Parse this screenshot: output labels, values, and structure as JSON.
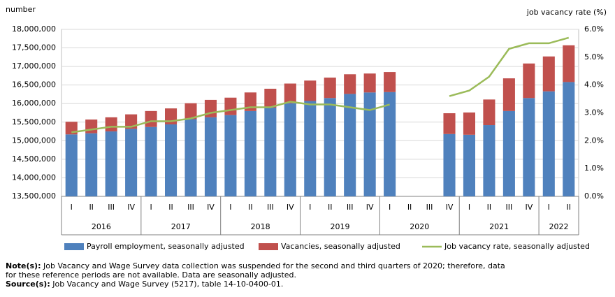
{
  "chart_data": {
    "type": "stacked-bar-line",
    "y_label": "number",
    "y2_label": "job vacancy rate (%)",
    "categories": [
      "I",
      "II",
      "III",
      "IV",
      "I",
      "II",
      "III",
      "IV",
      "I",
      "II",
      "III",
      "IV",
      "I",
      "II",
      "III",
      "IV",
      "I",
      "II",
      "III",
      "IV",
      "I",
      "II",
      "III",
      "IV",
      "I",
      "II"
    ],
    "groups": [
      {
        "label": "2016",
        "count": 4
      },
      {
        "label": "2017",
        "count": 4
      },
      {
        "label": "2018",
        "count": 4
      },
      {
        "label": "2019",
        "count": 4
      },
      {
        "label": "2020",
        "count": 4
      },
      {
        "label": "2021",
        "count": 4
      },
      {
        "label": "2022",
        "count": 2
      }
    ],
    "series": [
      {
        "name": "Payroll employment, seasonally adjusted",
        "kind": "bar",
        "color": "#4f81bd",
        "values": [
          15170000,
          15200000,
          15250000,
          15320000,
          15370000,
          15440000,
          15580000,
          15630000,
          15690000,
          15800000,
          15890000,
          16010000,
          16070000,
          16150000,
          16260000,
          16300000,
          16310000,
          null,
          null,
          15180000,
          15160000,
          15420000,
          15800000,
          16150000,
          16330000,
          16580000
        ]
      },
      {
        "name": "Vacancies, seasonally adjusted",
        "kind": "bar",
        "color": "#c0504d",
        "values": [
          340000,
          370000,
          380000,
          390000,
          430000,
          430000,
          430000,
          470000,
          470000,
          500000,
          510000,
          530000,
          550000,
          550000,
          530000,
          510000,
          540000,
          null,
          null,
          560000,
          600000,
          690000,
          880000,
          930000,
          940000,
          990000
        ]
      },
      {
        "name": "Job vacancy rate, seasonally adjusted",
        "kind": "line",
        "axis": "y2",
        "color": "#9bbb59",
        "values": [
          2.3,
          2.4,
          2.5,
          2.5,
          2.7,
          2.7,
          2.8,
          3.0,
          3.1,
          3.2,
          3.2,
          3.4,
          3.3,
          3.3,
          3.2,
          3.1,
          3.3,
          null,
          null,
          3.6,
          3.8,
          4.3,
          5.3,
          5.5,
          5.5,
          5.7
        ]
      }
    ],
    "ylim": [
      13500000,
      18000000
    ],
    "yticks": [
      {
        "value": 13500000,
        "label": "13,500,000"
      },
      {
        "value": 14000000,
        "label": "14,000,000"
      },
      {
        "value": 14500000,
        "label": "14,500,000"
      },
      {
        "value": 15000000,
        "label": "15,000,000"
      },
      {
        "value": 15500000,
        "label": "15,500,000"
      },
      {
        "value": 16000000,
        "label": "16,000,000"
      },
      {
        "value": 16500000,
        "label": "16,500,000"
      },
      {
        "value": 17000000,
        "label": "17,000,000"
      },
      {
        "value": 17500000,
        "label": "17,500,000"
      },
      {
        "value": 18000000,
        "label": "18,000,000"
      }
    ],
    "y2lim": [
      0,
      6
    ],
    "y2ticks": [
      {
        "value": 0,
        "label": "0.0%"
      },
      {
        "value": 1,
        "label": "1.0%"
      },
      {
        "value": 2,
        "label": "2.0%"
      },
      {
        "value": 3,
        "label": "3.0%"
      },
      {
        "value": 4,
        "label": "4.0%"
      },
      {
        "value": 5,
        "label": "5.0%"
      },
      {
        "value": 6,
        "label": "6.0%"
      }
    ],
    "grid": true,
    "note": {
      "label": "Note(s):",
      "lines": [
        "Job Vacancy and Wage Survey data collection was suspended for the second and third quarters of 2020; therefore, data",
        "for these reference periods are not available. Data are seasonally adjusted."
      ]
    },
    "source": {
      "label": "Source(s):",
      "text": "Job Vacancy and Wage Survey (5217), table 14-10-0400-01."
    }
  }
}
